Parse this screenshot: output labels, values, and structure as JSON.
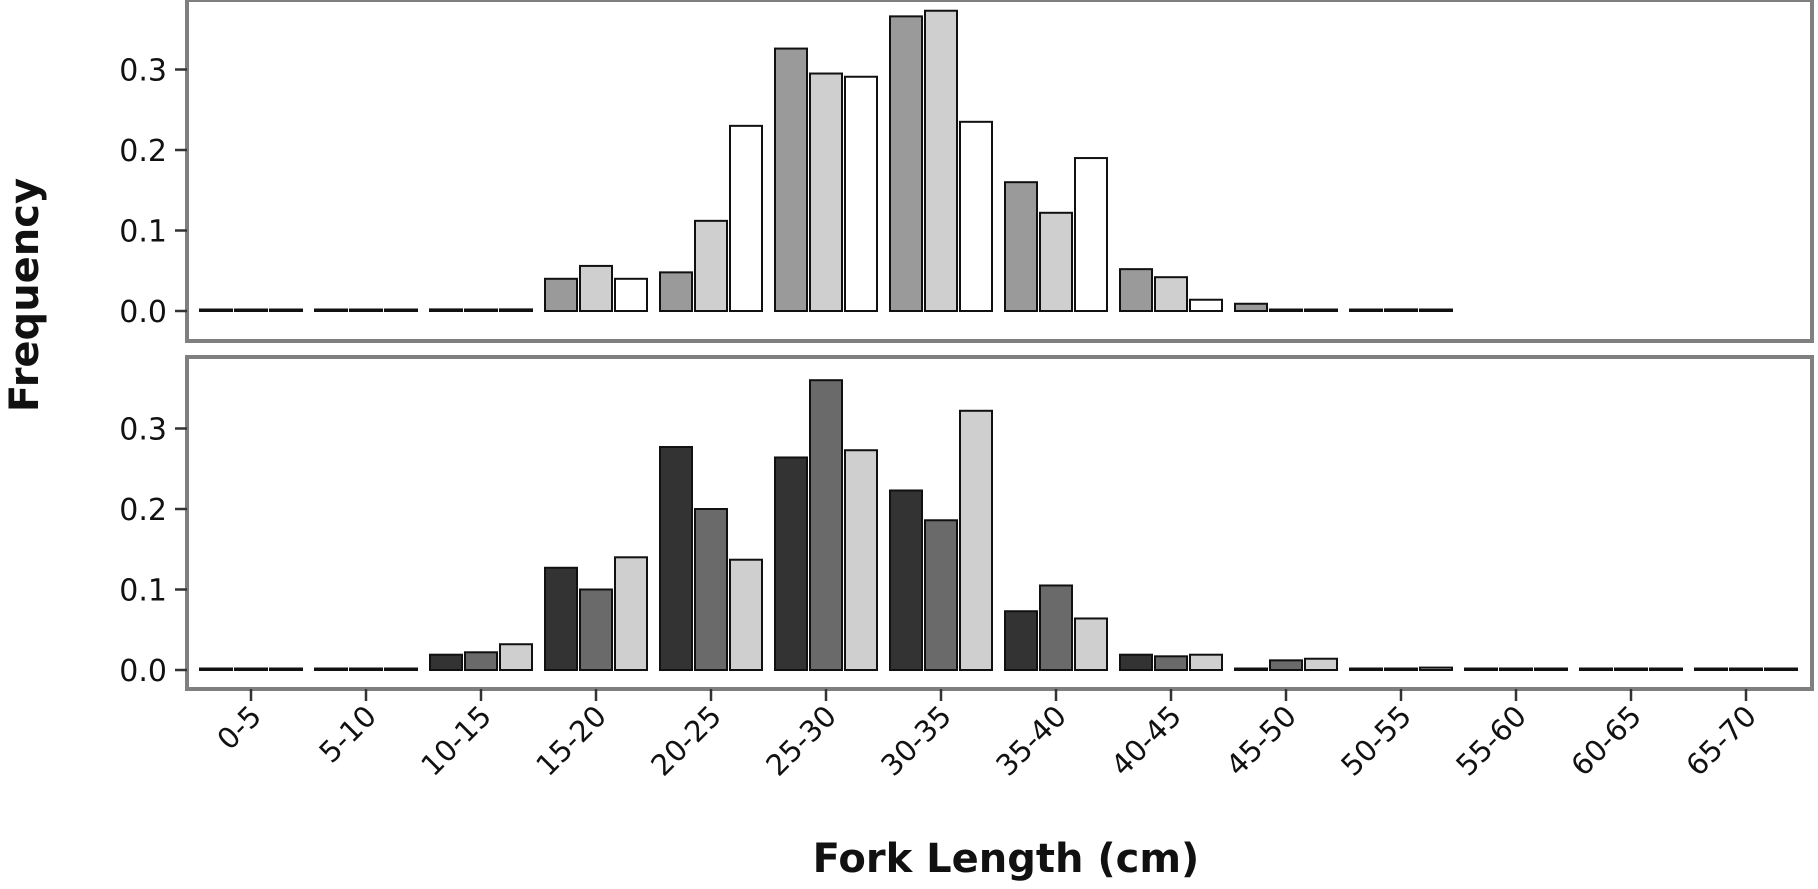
{
  "chart_data": [
    {
      "type": "bar",
      "panel": "top",
      "categories": [
        "0-5",
        "5-10",
        "10-15",
        "15-20",
        "20-25",
        "25-30",
        "30-35",
        "35-40",
        "40-45",
        "45-50",
        "50-55",
        "55-60",
        "60-65",
        "65-70"
      ],
      "yticks": [
        "0.0",
        "0.1",
        "0.2",
        "0.3"
      ],
      "ylim": [
        0,
        0.38
      ],
      "grid": false,
      "legend": "none",
      "series": [
        {
          "color": "#9a9a9a",
          "values": [
            0.0,
            0.0,
            0.002,
            0.04,
            0.048,
            0.326,
            0.366,
            0.16,
            0.052,
            0.009,
            0.0,
            null,
            null,
            null
          ]
        },
        {
          "color": "#cfcfcf",
          "values": [
            0.0,
            0.0,
            0.001,
            0.056,
            0.112,
            0.295,
            0.373,
            0.122,
            0.042,
            0.001,
            0.002,
            null,
            null,
            null
          ]
        },
        {
          "color": "#ffffff",
          "values": [
            0.0,
            0.0,
            0.002,
            0.04,
            0.23,
            0.291,
            0.235,
            0.19,
            0.014,
            0.001,
            0.001,
            null,
            null,
            null
          ]
        }
      ]
    },
    {
      "type": "bar",
      "panel": "bottom",
      "categories": [
        "0-5",
        "5-10",
        "10-15",
        "15-20",
        "20-25",
        "25-30",
        "30-35",
        "35-40",
        "40-45",
        "45-50",
        "50-55",
        "55-60",
        "60-65",
        "65-70"
      ],
      "yticks": [
        "0.0",
        "0.1",
        "0.2",
        "0.3"
      ],
      "ylim": [
        0,
        0.38
      ],
      "grid": false,
      "legend": "none",
      "series": [
        {
          "color": "#333333",
          "values": [
            0.0,
            0.0,
            0.019,
            0.127,
            0.277,
            0.264,
            0.223,
            0.073,
            0.019,
            0.0,
            0.0,
            0.0,
            0.0,
            0.0
          ]
        },
        {
          "color": "#6a6a6a",
          "values": [
            0.0,
            0.0,
            0.022,
            0.1,
            0.2,
            0.36,
            0.186,
            0.105,
            0.017,
            0.012,
            0.0,
            0.0,
            0.0,
            0.001
          ]
        },
        {
          "color": "#cfcfcf",
          "values": [
            0.0,
            0.0,
            0.032,
            0.14,
            0.137,
            0.273,
            0.322,
            0.064,
            0.019,
            0.014,
            0.003,
            0.0,
            0.0,
            0.0
          ]
        }
      ]
    }
  ],
  "axes": {
    "xlabel": "Fork Length (cm)",
    "ylabel": "Frequency"
  }
}
